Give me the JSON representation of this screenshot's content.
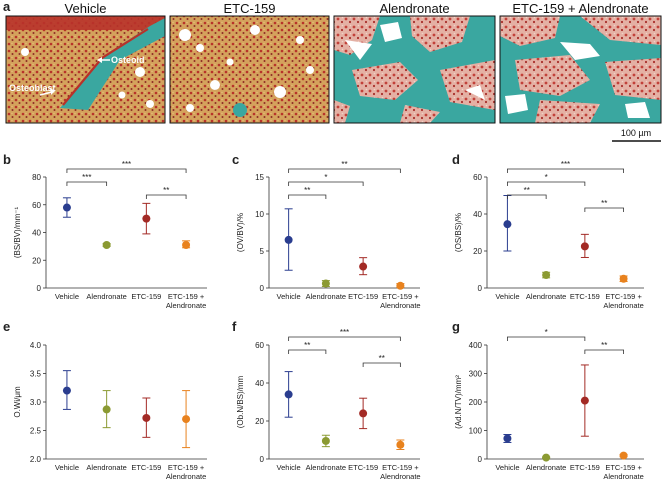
{
  "figure": {
    "panel_a": {
      "letter": "a",
      "titles": [
        "Vehicle",
        "ETC-159",
        "Alendronate",
        "ETC-159 + Alendronate"
      ],
      "annotations": [
        "Osteoid",
        "Osteoblast"
      ],
      "scale_bar": "100 µm"
    },
    "colors": {
      "Vehicle": "#2a3d8f",
      "Alendronate": "#8b9a32",
      "ETC-159": "#a32a25",
      "ETC-159 + Alendronate": "#e8821e",
      "tissue_pink": "#d99a8e",
      "tissue_red": "#b8322a",
      "bone_teal": "#3aa7a0",
      "marrow_yellow": "#d8a86a"
    }
  },
  "chart_data": [
    {
      "type": "scatter",
      "panel": "b",
      "ylabel": "(BS/BV)/mm⁻¹",
      "categories": [
        "Vehicle",
        "Alendronate",
        "ETC-159",
        "ETC-159 + Alendronate"
      ],
      "category_labels": [
        [
          "Vehicle"
        ],
        [
          "Alendronate"
        ],
        [
          "ETC-159"
        ],
        [
          "ETC-159 +",
          "Alendronate"
        ]
      ],
      "values": [
        58,
        31,
        50,
        31
      ],
      "err_low": [
        51,
        30,
        39,
        29
      ],
      "err_high": [
        65,
        32,
        61,
        34
      ],
      "ylim": [
        0,
        80
      ],
      "yticks": [
        "0",
        "20",
        "40",
        "60",
        "80"
      ],
      "significance": [
        {
          "from": 0,
          "to": 1,
          "label": "***"
        },
        {
          "from": 0,
          "to": 3,
          "label": "***"
        },
        {
          "from": 2,
          "to": 3,
          "label": "**"
        }
      ]
    },
    {
      "type": "scatter",
      "panel": "c",
      "ylabel": "(OV/BV)/%",
      "categories": [
        "Vehicle",
        "Alendronate",
        "ETC-159",
        "ETC-159 + Alendronate"
      ],
      "category_labels": [
        [
          "Vehicle"
        ],
        [
          "Alendronate"
        ],
        [
          "ETC-159"
        ],
        [
          "ETC-159 +",
          "Alendronate"
        ]
      ],
      "values": [
        6.5,
        0.6,
        2.9,
        0.3
      ],
      "err_low": [
        2.4,
        0.2,
        1.8,
        0.1
      ],
      "err_high": [
        10.7,
        1.0,
        4.1,
        0.6
      ],
      "ylim": [
        0,
        15
      ],
      "yticks": [
        "0",
        "5",
        "10",
        "15"
      ],
      "significance": [
        {
          "from": 0,
          "to": 1,
          "label": "**"
        },
        {
          "from": 0,
          "to": 2,
          "label": "*"
        },
        {
          "from": 0,
          "to": 3,
          "label": "**"
        }
      ]
    },
    {
      "type": "scatter",
      "panel": "d",
      "ylabel": "(OS/BS)/%",
      "categories": [
        "Vehicle",
        "Alendronate",
        "ETC-159",
        "ETC-159 + Alendronate"
      ],
      "category_labels": [
        [
          "Vehicle"
        ],
        [
          "Alendronate"
        ],
        [
          "ETC-159"
        ],
        [
          "ETC-159 +",
          "Alendronate"
        ]
      ],
      "values": [
        34.5,
        7,
        22.5,
        5
      ],
      "err_low": [
        20,
        5.5,
        16.5,
        3.5
      ],
      "err_high": [
        50,
        8.5,
        29,
        6.5
      ],
      "ylim": [
        0,
        60
      ],
      "yticks": [
        "0",
        "20",
        "40",
        "60"
      ],
      "significance": [
        {
          "from": 0,
          "to": 1,
          "label": "**"
        },
        {
          "from": 0,
          "to": 2,
          "label": "*"
        },
        {
          "from": 0,
          "to": 3,
          "label": "***"
        },
        {
          "from": 2,
          "to": 3,
          "label": "**"
        }
      ]
    },
    {
      "type": "scatter",
      "panel": "e",
      "ylabel": "O.Wi/μm",
      "categories": [
        "Vehicle",
        "Alendronate",
        "ETC-159",
        "ETC-159 + Alendronate"
      ],
      "category_labels": [
        [
          "Vehicle"
        ],
        [
          "Alendronate"
        ],
        [
          "ETC-159"
        ],
        [
          "ETC-159 +",
          "Alendronate"
        ]
      ],
      "values": [
        3.2,
        2.87,
        2.72,
        2.7
      ],
      "err_low": [
        2.87,
        2.55,
        2.38,
        2.2
      ],
      "err_high": [
        3.55,
        3.2,
        3.07,
        3.2
      ],
      "ylim": [
        2.0,
        4.0
      ],
      "yticks": [
        "2.0",
        "2.5",
        "3.0",
        "3.5",
        "4.0"
      ],
      "significance": []
    },
    {
      "type": "scatter",
      "panel": "f",
      "ylabel": "(Ob.N/BS)/mm",
      "categories": [
        "Vehicle",
        "Alendronate",
        "ETC-159",
        "ETC-159 + Alendronate"
      ],
      "category_labels": [
        [
          "Vehicle"
        ],
        [
          "Alendronate"
        ],
        [
          "ETC-159"
        ],
        [
          "ETC-159 +",
          "Alendronate"
        ]
      ],
      "values": [
        34,
        9.5,
        24,
        7.5
      ],
      "err_low": [
        22,
        6.5,
        16,
        5
      ],
      "err_high": [
        46,
        12.5,
        32,
        10
      ],
      "ylim": [
        0,
        60
      ],
      "yticks": [
        "0",
        "20",
        "40",
        "60"
      ],
      "significance": [
        {
          "from": 0,
          "to": 1,
          "label": "**"
        },
        {
          "from": 0,
          "to": 3,
          "label": "***"
        },
        {
          "from": 2,
          "to": 3,
          "label": "**"
        }
      ]
    },
    {
      "type": "scatter",
      "panel": "g",
      "ylabel": "(Ad.N/TV)/mm²",
      "categories": [
        "Vehicle",
        "Alendronate",
        "ETC-159",
        "ETC-159 + Alendronate"
      ],
      "category_labels": [
        [
          "Vehicle"
        ],
        [
          "Alendronate"
        ],
        [
          "ETC-159"
        ],
        [
          "ETC-159 +",
          "Alendronate"
        ]
      ],
      "values": [
        72,
        5,
        205,
        12
      ],
      "err_low": [
        58,
        3,
        80,
        8
      ],
      "err_high": [
        86,
        7,
        330,
        16
      ],
      "ylim": [
        0,
        400
      ],
      "yticks": [
        "0",
        "100",
        "200",
        "300",
        "400"
      ],
      "significance": [
        {
          "from": 0,
          "to": 2,
          "label": "*"
        },
        {
          "from": 2,
          "to": 3,
          "label": "**"
        }
      ]
    }
  ]
}
